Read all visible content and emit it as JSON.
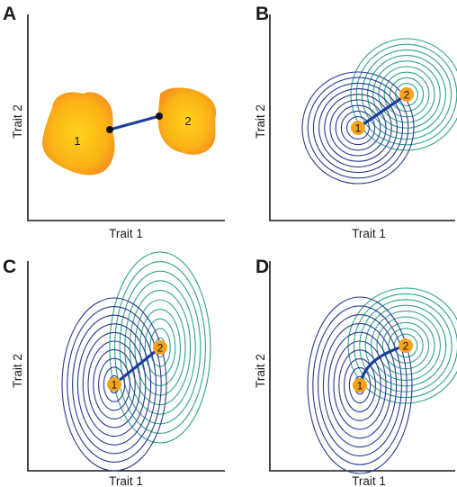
{
  "colors": {
    "axis": "#1a1a1a",
    "connector": "#1f3e9c",
    "contour_1": "#2b3990",
    "contour_2": "#2fa38a",
    "point_fill": "#f7a21b",
    "blob_outer": "#f7941d",
    "blob_inner": "#ffd21a"
  },
  "panels": [
    {
      "letter": "A",
      "xlabel": "Trait 1",
      "ylabel": "Trait 2",
      "style": "blobs",
      "labels": [
        "1",
        "2"
      ]
    },
    {
      "letter": "B",
      "xlabel": "Trait 1",
      "ylabel": "Trait 2",
      "style": "circular-contours",
      "labels": [
        "1",
        "2"
      ],
      "connector": "straight"
    },
    {
      "letter": "C",
      "xlabel": "Trait 1",
      "ylabel": "Trait 2",
      "style": "elliptical-contours",
      "labels": [
        "1",
        "2"
      ],
      "connector": "straight"
    },
    {
      "letter": "D",
      "xlabel": "Trait 1",
      "ylabel": "Trait 2",
      "style": "mixed-contours",
      "labels": [
        "1",
        "2"
      ],
      "connector": "curved"
    }
  ]
}
